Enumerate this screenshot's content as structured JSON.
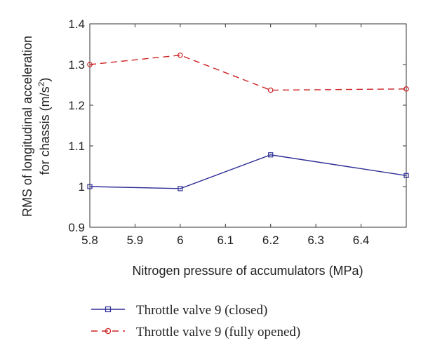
{
  "chart_data": {
    "type": "line",
    "xlabel": "Nitrogen pressure of accumulators (MPa)",
    "ylabel_line1": "RMS of longitudinal acceleration",
    "ylabel_line2_prefix": "for chassis (m/s",
    "ylabel_line2_sup": "2",
    "ylabel_line2_suffix": ")",
    "xlim": [
      5.8,
      6.5
    ],
    "ylim": [
      0.9,
      1.4
    ],
    "x_ticks": [
      "5.8",
      "5.9",
      "6",
      "6.1",
      "6.2",
      "6.3",
      "6.4"
    ],
    "y_ticks": [
      "0.9",
      "1",
      "1.1",
      "1.2",
      "1.3",
      "1.4"
    ],
    "x": [
      5.8,
      6.0,
      6.2,
      6.5
    ],
    "series": [
      {
        "name": "Throttle valve 9 (closed)",
        "values": [
          1.0,
          0.995,
          1.078,
          1.027
        ],
        "color": "#2e2e96",
        "line_style": "solid",
        "marker": "square"
      },
      {
        "name": "Throttle valve 9 (fully opened)",
        "values": [
          1.3,
          1.323,
          1.237,
          1.24
        ],
        "color": "#cc2222",
        "line_style": "dashed",
        "marker": "circle"
      }
    ],
    "legend_position": "bottom",
    "grid": false
  }
}
